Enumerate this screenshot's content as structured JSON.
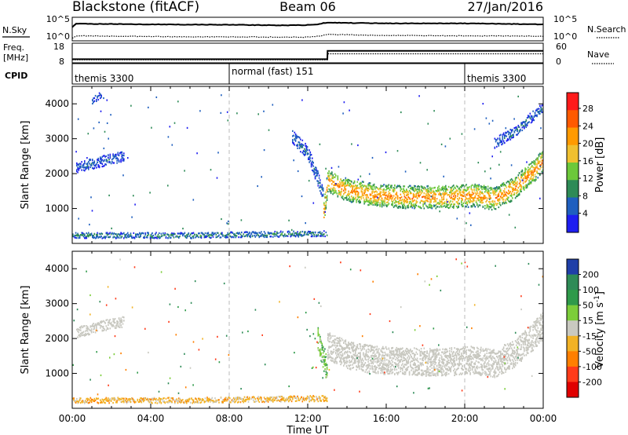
{
  "header": {
    "station": "Blackstone (fitACF)",
    "beam": "Beam 06",
    "date": "27/Jan/2016"
  },
  "sky_panel": {
    "left_label": "N.Sky",
    "right_label": "N.Search",
    "left_ticks": [
      "10^5",
      "10^0"
    ],
    "right_ticks": [
      "10^5",
      "10^0"
    ]
  },
  "freq_panel": {
    "left_label_1": "Freq.",
    "left_label_2": "[MHz]",
    "right_label": "Nave",
    "left_ticks": [
      "18",
      "8"
    ],
    "right_ticks": [
      "60",
      "0"
    ]
  },
  "cpid_panel": {
    "label": "CPID",
    "segments": [
      {
        "text": "themis 3300",
        "start_hour": 0
      },
      {
        "text": "normal (fast) 151",
        "start_hour": 8
      },
      {
        "text": "themis 3300",
        "start_hour": 20
      }
    ]
  },
  "power_colorbar": {
    "title": "Power [dB]",
    "ticks": [
      "28",
      "24",
      "20",
      "16",
      "12",
      "8",
      "4"
    ],
    "colors": [
      "#ff1a1a",
      "#ff5a00",
      "#ff9a00",
      "#f0c030",
      "#6cc83a",
      "#2e8b57",
      "#1f5fbf",
      "#1e1ef0"
    ]
  },
  "velocity_colorbar": {
    "title": "Velocity [m s^-1]",
    "ticks": [
      "200",
      "100",
      "50",
      "15",
      "-15",
      "-50",
      "-100",
      "-200"
    ],
    "colors": [
      "#1f3fa8",
      "#2e8b57",
      "#2f9a4a",
      "#7ccd3a",
      "#c9c9c0",
      "#f2b225",
      "#ff7f00",
      "#ff3b1a",
      "#e00000"
    ],
    "ground_scatter_color": "#c8c8c0"
  },
  "chart_data": [
    {
      "type": "line",
      "title": "Blackstone (fitACF)  Beam 06  27/Jan/2016",
      "x_unit": "hour UT",
      "xlim": [
        0,
        24
      ],
      "series": [
        {
          "name": "N.Sky",
          "x": [
            0,
            0.2,
            0.4,
            4,
            8,
            11,
            12.4,
            12.8,
            13,
            16,
            20,
            24
          ],
          "values": [
            3.5,
            4.5,
            4.5,
            4.3,
            4.2,
            4.0,
            4.2,
            4.7,
            4.8,
            4.6,
            4.6,
            4.3
          ]
        },
        {
          "name": "N.Search",
          "x": [
            0,
            0.2,
            4,
            8,
            12,
            12.8,
            13,
            16,
            20,
            24
          ],
          "values": [
            0.4,
            1.0,
            0.8,
            0.7,
            0.6,
            1.1,
            1.4,
            1.1,
            1.0,
            0.9
          ]
        }
      ]
    },
    {
      "type": "line",
      "x_unit": "hour UT",
      "xlim": [
        0,
        24
      ],
      "series": [
        {
          "name": "Freq.",
          "x": [
            0,
            13,
            13.01,
            24
          ],
          "values": [
            10.3,
            10.3,
            15.6,
            15.6
          ]
        },
        {
          "name": "Nave",
          "x": [
            0,
            13,
            13.01,
            24
          ],
          "values": [
            6,
            6,
            30,
            30
          ]
        }
      ]
    },
    {
      "type": "heatmap",
      "title": "Power [dB]",
      "ylabel": "Slant Range [km]",
      "xlabel": "Time UT",
      "xlim": [
        0,
        24
      ],
      "ylim": [
        0,
        4500
      ],
      "y_ticks": [
        1000,
        2000,
        3000,
        4000
      ],
      "x_ticks": [
        "00:00",
        "04:00",
        "08:00",
        "12:00",
        "16:00",
        "20:00",
        "00:00"
      ],
      "dashed_lines_at_hour": [
        8,
        20
      ],
      "echo_bands": [
        {
          "x": [
            0.2,
            1.0,
            2.0,
            2.6
          ],
          "center": [
            2200,
            2300,
            2450,
            2500
          ],
          "width": 300,
          "power": 6
        },
        {
          "x": [
            1.0,
            1.5
          ],
          "center": [
            4100,
            4300
          ],
          "width": 200,
          "power": 6
        },
        {
          "x": [
            11.2,
            12.0,
            12.8
          ],
          "center": [
            3100,
            2600,
            1400
          ],
          "width": 400,
          "power": 7
        },
        {
          "x": [
            12.8,
            13.0,
            14.0,
            15.5,
            17.0,
            19.0,
            20.5,
            21.5,
            22.5,
            23.5,
            24.0
          ],
          "center": [
            900,
            1800,
            1550,
            1400,
            1350,
            1350,
            1400,
            1300,
            1600,
            2100,
            2400
          ],
          "width": 650,
          "power": 24
        },
        {
          "x": [
            21.5,
            22.5,
            23.5,
            24.0
          ],
          "center": [
            2900,
            3200,
            3700,
            3900
          ],
          "width": 300,
          "power": 8
        },
        {
          "x": [
            0,
            6,
            12,
            13
          ],
          "center": [
            250,
            250,
            300,
            300
          ],
          "width": 160,
          "power": 10
        }
      ]
    },
    {
      "type": "heatmap",
      "title": "Velocity [m s^-1]",
      "ylabel": "Slant Range [km]",
      "xlabel": "Time UT",
      "xlim": [
        0,
        24
      ],
      "ylim": [
        0,
        4500
      ],
      "y_ticks": [
        1000,
        2000,
        3000,
        4000
      ],
      "x_ticks": [
        "00:00",
        "04:00",
        "08:00",
        "12:00",
        "16:00",
        "20:00",
        "00:00"
      ],
      "dashed_lines_at_hour": [
        8,
        20
      ],
      "echo_bands": [
        {
          "x": [
            0.2,
            1.0,
            2.0,
            2.6
          ],
          "center": [
            2200,
            2300,
            2450,
            2500
          ],
          "width": 300,
          "velocity": 0,
          "ground_scatter": true
        },
        {
          "x": [
            12.5,
            12.8,
            13.0
          ],
          "center": [
            2000,
            1400,
            1100
          ],
          "width": 700,
          "velocity": 40
        },
        {
          "x": [
            13.0,
            14.0,
            15.5,
            17.0,
            19.0,
            20.5,
            21.5,
            22.5,
            23.5,
            24.0
          ],
          "center": [
            1800,
            1550,
            1400,
            1350,
            1350,
            1400,
            1300,
            1600,
            2100,
            2400
          ],
          "width": 800,
          "velocity": 0,
          "ground_scatter": true
        },
        {
          "x": [
            0,
            6,
            12,
            13
          ],
          "center": [
            250,
            250,
            300,
            300
          ],
          "width": 160,
          "velocity": -30
        }
      ]
    }
  ]
}
